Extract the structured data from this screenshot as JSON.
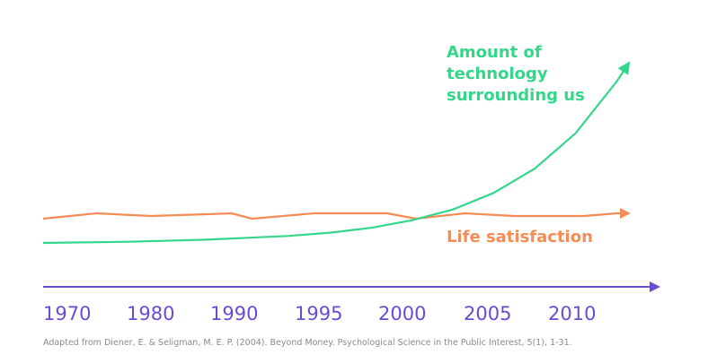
{
  "chart_data": {
    "type": "line",
    "title": "",
    "xlabel": "",
    "ylabel": "",
    "x_ticks": [
      "1970",
      "1980",
      "1990",
      "1995",
      "2000",
      "2005",
      "2010"
    ],
    "series": [
      {
        "name": "Life satisfaction",
        "label_lines": [
          "Life satisfaction"
        ],
        "color": "#f58c56",
        "points": [
          [
            0,
            0.45
          ],
          [
            0.65,
            0.55
          ],
          [
            1.32,
            0.5
          ],
          [
            2.3,
            0.55
          ],
          [
            2.55,
            0.45
          ],
          [
            3.3,
            0.55
          ],
          [
            4.2,
            0.55
          ],
          [
            4.55,
            0.45
          ],
          [
            5.15,
            0.55
          ],
          [
            5.75,
            0.5
          ],
          [
            6.6,
            0.5
          ],
          [
            7.0,
            0.55
          ],
          [
            7.15,
            0.55
          ]
        ]
      },
      {
        "name": "Amount of technology surrounding us",
        "label_lines": [
          "Amount of",
          "technology",
          "surrounding us"
        ],
        "color": "#34d68a",
        "points": [
          [
            0,
            0.0
          ],
          [
            1.0,
            0.02
          ],
          [
            2.0,
            0.06
          ],
          [
            3.0,
            0.13
          ],
          [
            3.5,
            0.19
          ],
          [
            4.0,
            0.28
          ],
          [
            4.5,
            0.42
          ],
          [
            5.0,
            0.62
          ],
          [
            5.5,
            0.93
          ],
          [
            6.0,
            1.38
          ],
          [
            6.5,
            2.04
          ],
          [
            7.0,
            3.0
          ],
          [
            7.15,
            3.35
          ]
        ]
      }
    ],
    "axis_color": "#6a4bd4",
    "xlim": [
      0,
      7.15
    ],
    "ylim": [
      0,
      3.35
    ]
  },
  "source": "Adapted from Diener, E. & Seligman, M. E. P. (2004). Beyond Money. Psychological Science in the Public Interest, 5(1), 1-31."
}
